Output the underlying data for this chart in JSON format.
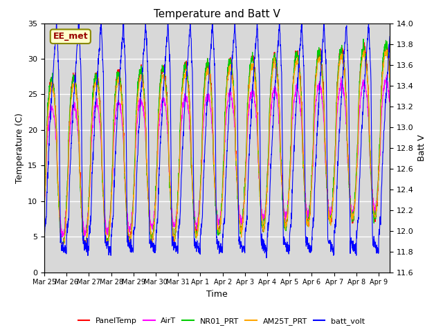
{
  "title": "Temperature and Batt V",
  "xlabel": "Time",
  "ylabel_left": "Temperature (C)",
  "ylabel_right": "Batt V",
  "annotation_text": "EE_met",
  "left_ylim": [
    0,
    35
  ],
  "right_ylim": [
    11.6,
    14.0
  ],
  "bg_color": "#d8d8d8",
  "fig_color": "#ffffff",
  "legend_entries": [
    "PanelTemp",
    "AirT",
    "NR01_PRT",
    "AM25T_PRT",
    "batt_volt"
  ],
  "legend_colors": [
    "#ff0000",
    "#ff00ff",
    "#00ff00",
    "#ffa500",
    "#0000ff"
  ],
  "x_tick_labels": [
    "Mar 25",
    "Mar 26",
    "Mar 27",
    "Mar 28",
    "Mar 29",
    "Mar 30",
    "Mar 31",
    "Apr 1",
    "Apr 2",
    "Apr 3",
    "Apr 4",
    "Apr 5",
    "Apr 6",
    "Apr 7",
    "Apr 8",
    "Apr 9"
  ],
  "n_points": 2000
}
